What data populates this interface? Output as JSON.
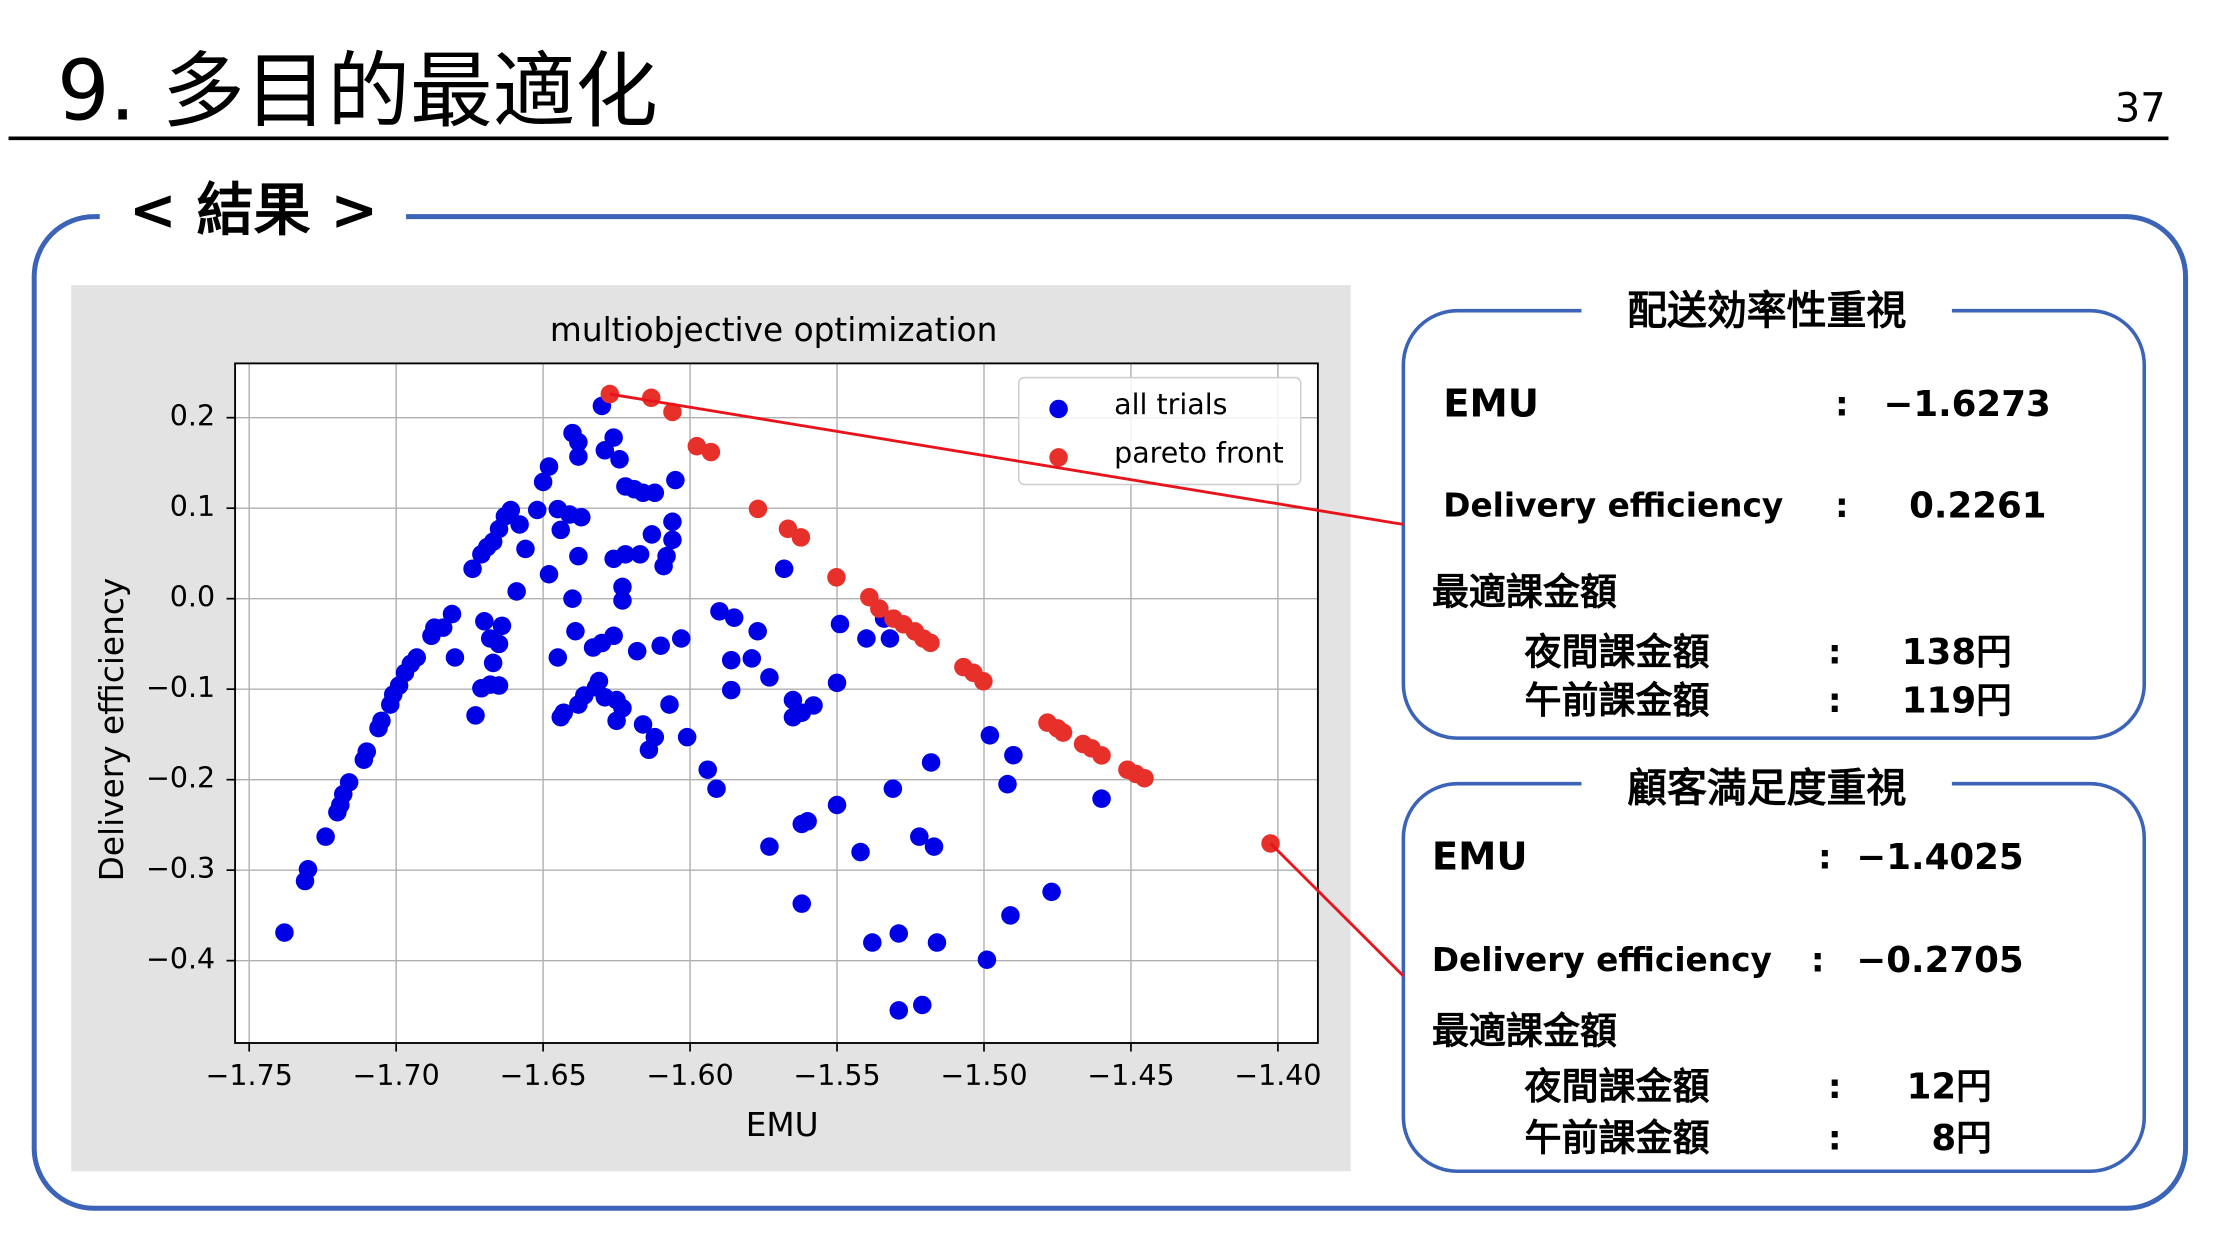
{
  "slide": {
    "title": "9. 多目的最適化",
    "page_number": "37",
    "section": "< 結果 >"
  },
  "panels": [
    {
      "heading": "配送効率性重視",
      "rows": [
        {
          "label": "EMU",
          "separator": ":",
          "value": "−1.6273"
        },
        {
          "label": "Delivery efficiency",
          "separator": ":",
          "value": "0.2261"
        }
      ],
      "subheading": "最適課金額",
      "fees": [
        {
          "label": "夜間課金額",
          "separator": ":",
          "value": "138円"
        },
        {
          "label": "午前課金額",
          "separator": ":",
          "value": "119円"
        }
      ]
    },
    {
      "heading": "顧客満足度重視",
      "rows": [
        {
          "label": "EMU",
          "separator": ":",
          "value": "−1.4025"
        },
        {
          "label": "Delivery efficiency",
          "separator": ":",
          "value": "−0.2705"
        }
      ],
      "subheading": "最適課金額",
      "fees": [
        {
          "label": "夜間課金額",
          "separator": ":",
          "value": "12円"
        },
        {
          "label": "午前課金額",
          "separator": ":",
          "value": "8円"
        }
      ]
    }
  ],
  "chart_data": {
    "type": "scatter",
    "title": "multiobjective optimization",
    "x_label": "EMU",
    "y_label": "Delivery efficiency",
    "xlim": [
      -1.7548,
      -1.3864
    ],
    "ylim": [
      -0.491,
      0.26
    ],
    "xticks": [
      {
        "value": -1.75,
        "label": "−1.75"
      },
      {
        "value": -1.7,
        "label": "−1.70"
      },
      {
        "value": -1.65,
        "label": "−1.65"
      },
      {
        "value": -1.6,
        "label": "−1.60"
      },
      {
        "value": -1.55,
        "label": "−1.55"
      },
      {
        "value": -1.5,
        "label": "−1.50"
      },
      {
        "value": -1.45,
        "label": "−1.45"
      },
      {
        "value": -1.4,
        "label": "−1.40"
      }
    ],
    "yticks": [
      0.2,
      0.1,
      {
        "value": 0,
        "label": "0.0"
      },
      {
        "value": -0.1,
        "label": "−0.1"
      },
      {
        "value": -0.2,
        "label": "−0.2"
      },
      {
        "value": -0.3,
        "label": "−0.3"
      },
      {
        "value": -0.4,
        "label": "−0.4"
      }
    ],
    "grid": true,
    "legend": "upper right",
    "series": [
      {
        "name": "all trials",
        "color": "#0000e6",
        "x": [
          -1.738,
          -1.731,
          -1.73,
          -1.724,
          -1.72,
          -1.719,
          -1.718,
          -1.716,
          -1.711,
          -1.71,
          -1.706,
          -1.705,
          -1.702,
          -1.701,
          -1.699,
          -1.697,
          -1.695,
          -1.693,
          -1.688,
          -1.687,
          -1.684,
          -1.681,
          -1.68,
          -1.674,
          -1.671,
          -1.669,
          -1.667,
          -1.665,
          -1.663,
          -1.661,
          -1.658,
          -1.656,
          -1.67,
          -1.668,
          -1.667,
          -1.665,
          -1.664,
          -1.668,
          -1.671,
          -1.665,
          -1.673,
          -1.659,
          -1.652,
          -1.65,
          -1.648,
          -1.645,
          -1.644,
          -1.641,
          -1.648,
          -1.64,
          -1.638,
          -1.638,
          -1.63,
          -1.629,
          -1.626,
          -1.624,
          -1.622,
          -1.619,
          -1.616,
          -1.612,
          -1.613,
          -1.606,
          -1.605,
          -1.606,
          -1.608,
          -1.609,
          -1.617,
          -1.626,
          -1.623,
          -1.623,
          -1.622,
          -1.638,
          -1.637,
          -1.64,
          -1.639,
          -1.645,
          -1.633,
          -1.63,
          -1.626,
          -1.618,
          -1.61,
          -1.603,
          -1.631,
          -1.632,
          -1.636,
          -1.638,
          -1.644,
          -1.643,
          -1.629,
          -1.625,
          -1.623,
          -1.616,
          -1.612,
          -1.607,
          -1.601,
          -1.614,
          -1.625,
          -1.59,
          -1.585,
          -1.577,
          -1.586,
          -1.586,
          -1.579,
          -1.573,
          -1.568,
          -1.565,
          -1.562,
          -1.558,
          -1.565,
          -1.549,
          -1.54,
          -1.534,
          -1.532,
          -1.55,
          -1.55,
          -1.594,
          -1.591,
          -1.573,
          -1.562,
          -1.56,
          -1.562,
          -1.542,
          -1.531,
          -1.518,
          -1.522,
          -1.517,
          -1.538,
          -1.529,
          -1.516,
          -1.529,
          -1.521,
          -1.499,
          -1.498,
          -1.49,
          -1.492,
          -1.491,
          -1.477,
          -1.46
        ],
        "values": [
          -0.369,
          -0.312,
          -0.299,
          -0.263,
          -0.236,
          -0.228,
          -0.216,
          -0.203,
          -0.178,
          -0.169,
          -0.143,
          -0.135,
          -0.117,
          -0.106,
          -0.096,
          -0.082,
          -0.072,
          -0.065,
          -0.041,
          -0.032,
          -0.032,
          -0.017,
          -0.065,
          0.033,
          0.049,
          0.057,
          0.063,
          0.077,
          0.091,
          0.098,
          0.082,
          0.055,
          -0.025,
          -0.044,
          -0.071,
          -0.05,
          -0.03,
          -0.095,
          -0.099,
          -0.096,
          -0.129,
          0.008,
          0.098,
          0.129,
          0.146,
          0.099,
          0.076,
          0.093,
          0.027,
          0.183,
          0.173,
          0.157,
          0.213,
          0.164,
          0.178,
          0.154,
          0.124,
          0.121,
          0.117,
          0.117,
          0.071,
          0.085,
          0.131,
          0.065,
          0.047,
          0.036,
          0.049,
          0.044,
          0.013,
          -0.002,
          0.049,
          0.047,
          0.09,
          0.0,
          -0.036,
          -0.065,
          -0.054,
          -0.049,
          -0.041,
          -0.058,
          -0.052,
          -0.044,
          -0.091,
          -0.098,
          -0.107,
          -0.117,
          -0.131,
          -0.126,
          -0.109,
          -0.112,
          -0.121,
          -0.139,
          -0.153,
          -0.117,
          -0.153,
          -0.167,
          -0.135,
          -0.014,
          -0.021,
          -0.036,
          -0.068,
          -0.101,
          -0.066,
          -0.087,
          0.033,
          -0.112,
          -0.126,
          -0.118,
          -0.131,
          -0.028,
          -0.044,
          -0.022,
          -0.044,
          -0.093,
          -0.228,
          -0.189,
          -0.21,
          -0.274,
          -0.249,
          -0.246,
          -0.337,
          -0.28,
          -0.21,
          -0.181,
          -0.263,
          -0.274,
          -0.38,
          -0.37,
          -0.38,
          -0.455,
          -0.449,
          -0.399,
          -0.151,
          -0.173,
          -0.205,
          -0.35,
          -0.324,
          -0.221
        ]
      },
      {
        "name": "pareto front",
        "color": "#e8302a",
        "x": [
          -1.6273,
          -1.6132,
          -1.606,
          -1.5977,
          -1.5929,
          -1.5769,
          -1.5667,
          -1.5623,
          -1.5502,
          -1.539,
          -1.5356,
          -1.5308,
          -1.5274,
          -1.5235,
          -1.5206,
          -1.5182,
          -1.507,
          -1.5036,
          -1.5002,
          -1.4784,
          -1.475,
          -1.4731,
          -1.4663,
          -1.4634,
          -1.46,
          -1.4512,
          -1.4483,
          -1.4454,
          -1.4025
        ],
        "values": [
          0.2261,
          0.222,
          0.2063,
          0.1685,
          0.162,
          0.0992,
          0.0772,
          0.0677,
          0.0236,
          0.0016,
          -0.011,
          -0.022,
          -0.0283,
          -0.0362,
          -0.0441,
          -0.0488,
          -0.0756,
          -0.0819,
          -0.0913,
          -0.137,
          -0.1433,
          -0.148,
          -0.1606,
          -0.1654,
          -0.1732,
          -0.189,
          -0.1937,
          -0.1984,
          -0.2705
        ]
      }
    ]
  }
}
